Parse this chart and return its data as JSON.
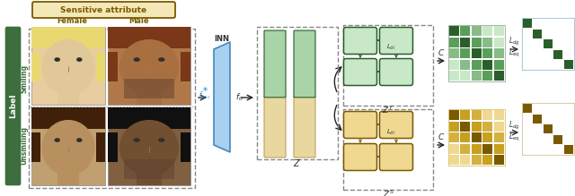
{
  "sensitive_attr_label": "Sensitive attribute",
  "female_label": "Female",
  "male_label": "Male",
  "label_text": "Label",
  "smiling_label": "Smiling",
  "unsmiling_label": "Unsmiling",
  "inn_label": "INN",
  "bg_color": "#ffffff",
  "green_dark": "#2a5e2a",
  "green_mid": "#5a9e5a",
  "green_light": "#c8e8c8",
  "gold_dark": "#7a5a00",
  "gold_mid": "#c8a020",
  "gold_light": "#f0d890",
  "label_bg": "#3d6e3d",
  "arrow_color": "#222222",
  "dashed_color": "#888888",
  "face_skin": [
    "#e8cda0",
    "#b07848",
    "#c0a070",
    "#806040"
  ],
  "face_hair": [
    "#e8d870",
    "#7a3818",
    "#402008",
    "#101010"
  ],
  "face_skin2": [
    "#e0c898",
    "#a87040",
    "#b89060",
    "#705030"
  ],
  "blue_trap": "#a8d0f0",
  "blue_trap_edge": "#4488bb"
}
